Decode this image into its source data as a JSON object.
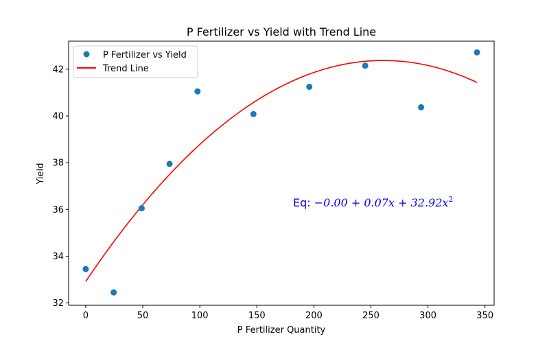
{
  "chart_data": {
    "type": "scatter",
    "title": "P Fertilizer vs Yield with Trend Line",
    "xlabel": "P Fertilizer Quantity",
    "ylabel": "Yield",
    "xlim": [
      -15,
      358
    ],
    "ylim": [
      31.9,
      43.2
    ],
    "xticks": [
      0,
      50,
      100,
      150,
      200,
      250,
      300,
      350
    ],
    "yticks": [
      32,
      34,
      36,
      38,
      40,
      42
    ],
    "grid": false,
    "legend_position": "top-left",
    "series": [
      {
        "name": "P Fertilizer vs Yield",
        "kind": "scatter",
        "color": "#1f77b4",
        "x": [
          0,
          24.5,
          49,
          73.5,
          98,
          147,
          196,
          245,
          294,
          343
        ],
        "y": [
          33.45,
          32.45,
          36.05,
          37.95,
          41.05,
          40.08,
          41.25,
          42.15,
          40.37,
          42.72
        ]
      },
      {
        "name": "Trend Line",
        "kind": "line",
        "color": "#ff0000",
        "coefficients": {
          "a": -0.000139,
          "b": 0.0725,
          "c": 32.92
        },
        "x_range": [
          0,
          343
        ]
      }
    ],
    "annotation": {
      "prefix": "Eq: ",
      "formula": "−0.00 + 0.07x + 32.92x",
      "exponent": "2",
      "color": "#0000ff"
    }
  }
}
